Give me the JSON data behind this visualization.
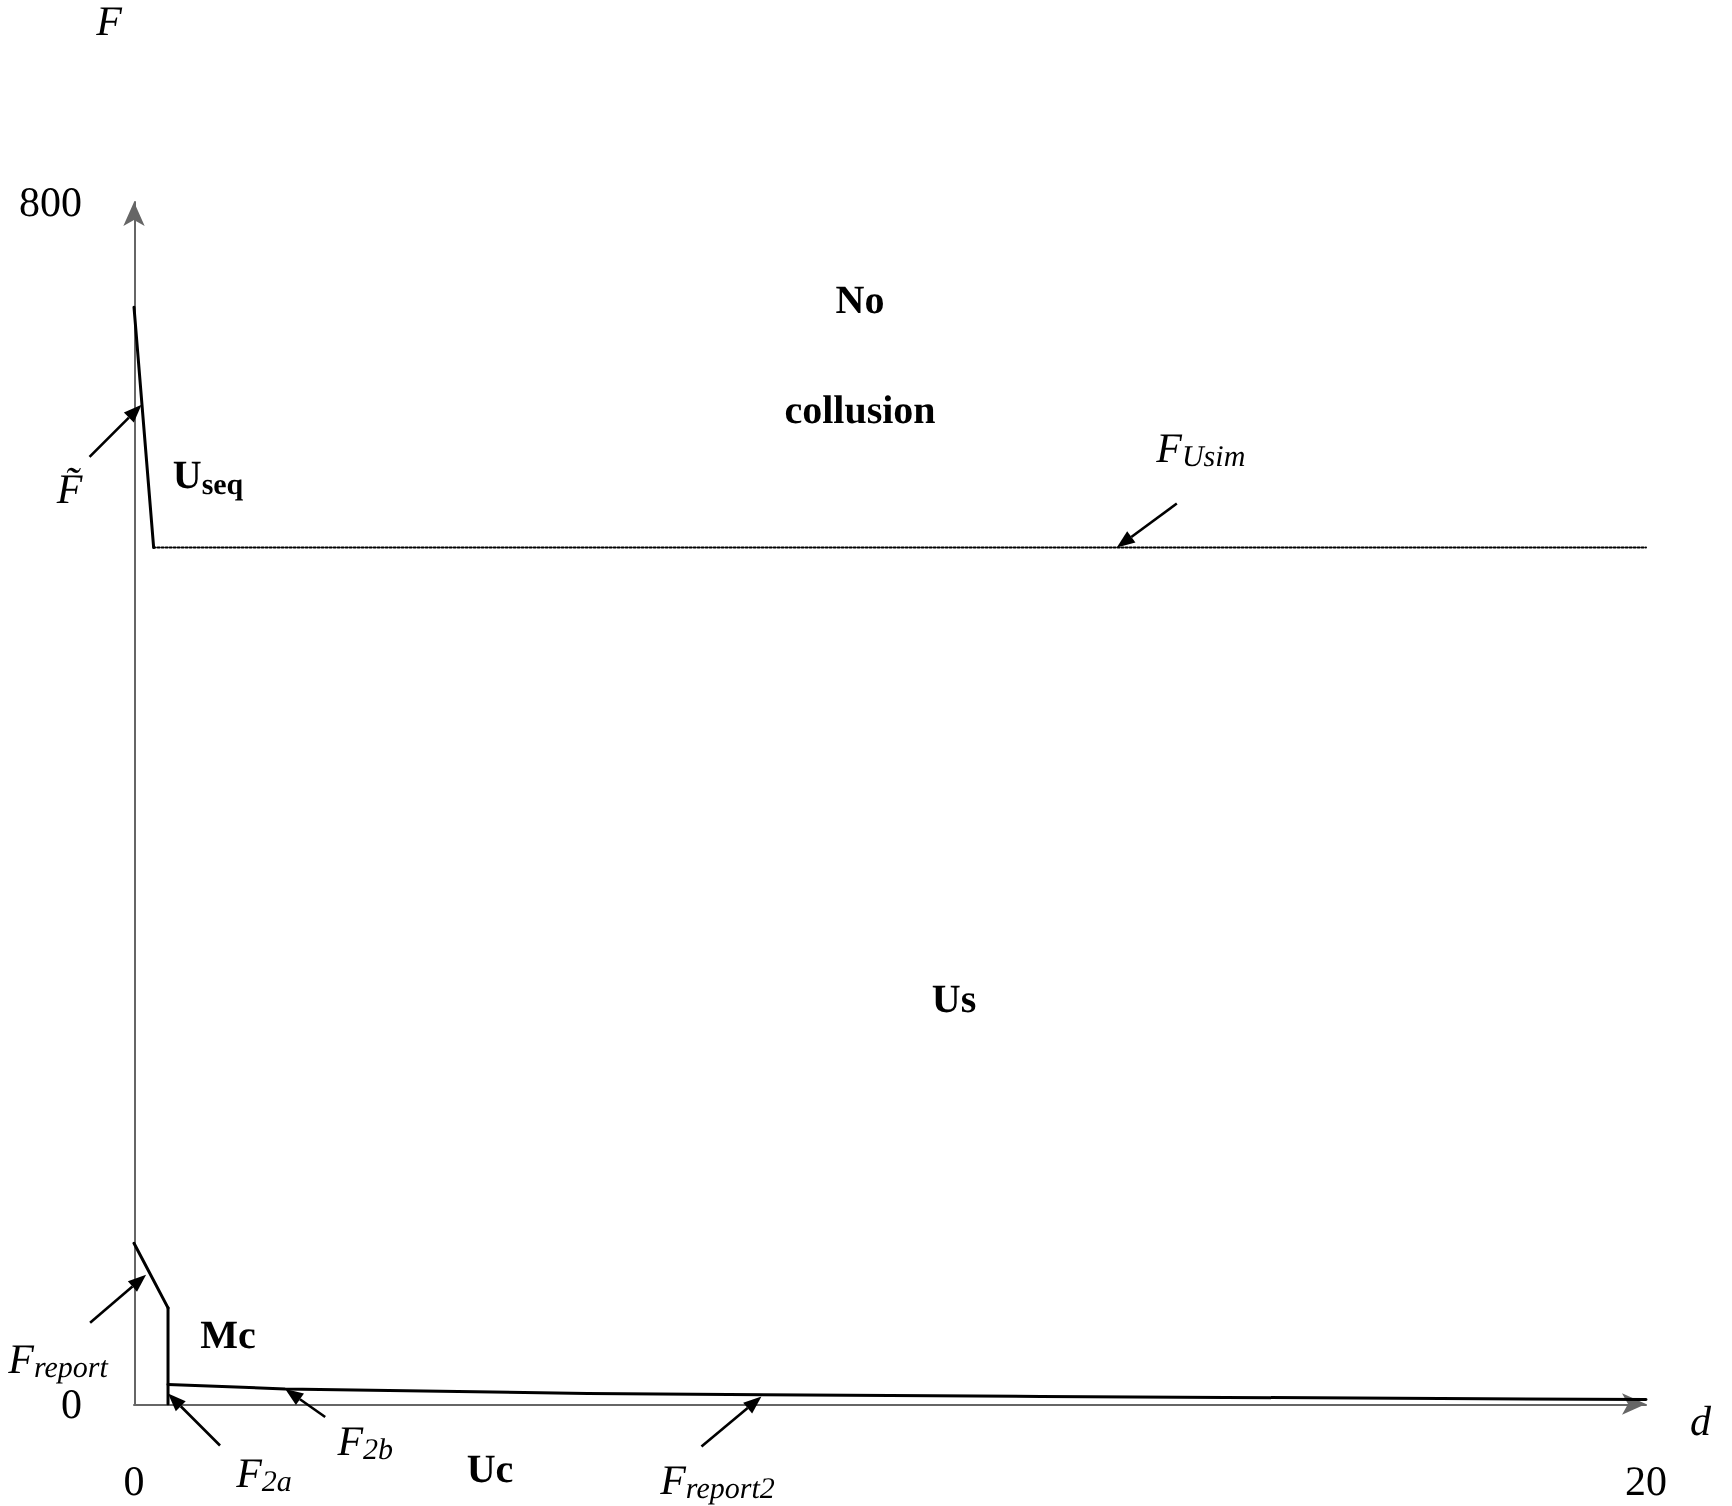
{
  "chart_data": {
    "type": "line",
    "xlabel": "d",
    "ylabel": "F",
    "xlim": [
      0,
      20
    ],
    "ylim": [
      0,
      800
    ],
    "xticks": [
      0,
      20
    ],
    "yticks": [
      0,
      800
    ],
    "grid": false,
    "marker": "none",
    "line_style": "solid",
    "series": [
      {
        "color": "#000000",
        "x": [
          0,
          0.26
        ],
        "values": [
          730,
          570
        ]
      },
      {
        "color": "#000000",
        "line_style": "dotted",
        "x": [
          0.26,
          20
        ],
        "values": [
          570,
          570
        ]
      },
      {
        "color": "#000000",
        "x": [
          0,
          0.45
        ],
        "values": [
          107,
          64
        ]
      },
      {
        "color": "#000000",
        "x": [
          0.45,
          0.45
        ],
        "values": [
          64,
          0
        ]
      },
      {
        "color": "#000000",
        "x": [
          0.45,
          2,
          6,
          12,
          20
        ],
        "values": [
          13,
          10,
          7,
          5,
          3
        ]
      }
    ],
    "annotations": [
      {
        "text": "F̃",
        "x": 0.1,
        "y": 665
      },
      {
        "text": "F$_{Usim}$",
        "x": 13,
        "y": 570
      },
      {
        "text": "F$_{report}$",
        "x": 0.16,
        "y": 86
      },
      {
        "text": "F$_{2a}$",
        "x": 0.45,
        "y": 7
      },
      {
        "text": "F$_{2b}$",
        "x": 2,
        "y": 10
      },
      {
        "text": "F$_{report2}$",
        "x": 8.3,
        "y": 5
      },
      "No collusion",
      "U$_{seq}$",
      "Us",
      "Mc",
      "Uc"
    ]
  }
}
